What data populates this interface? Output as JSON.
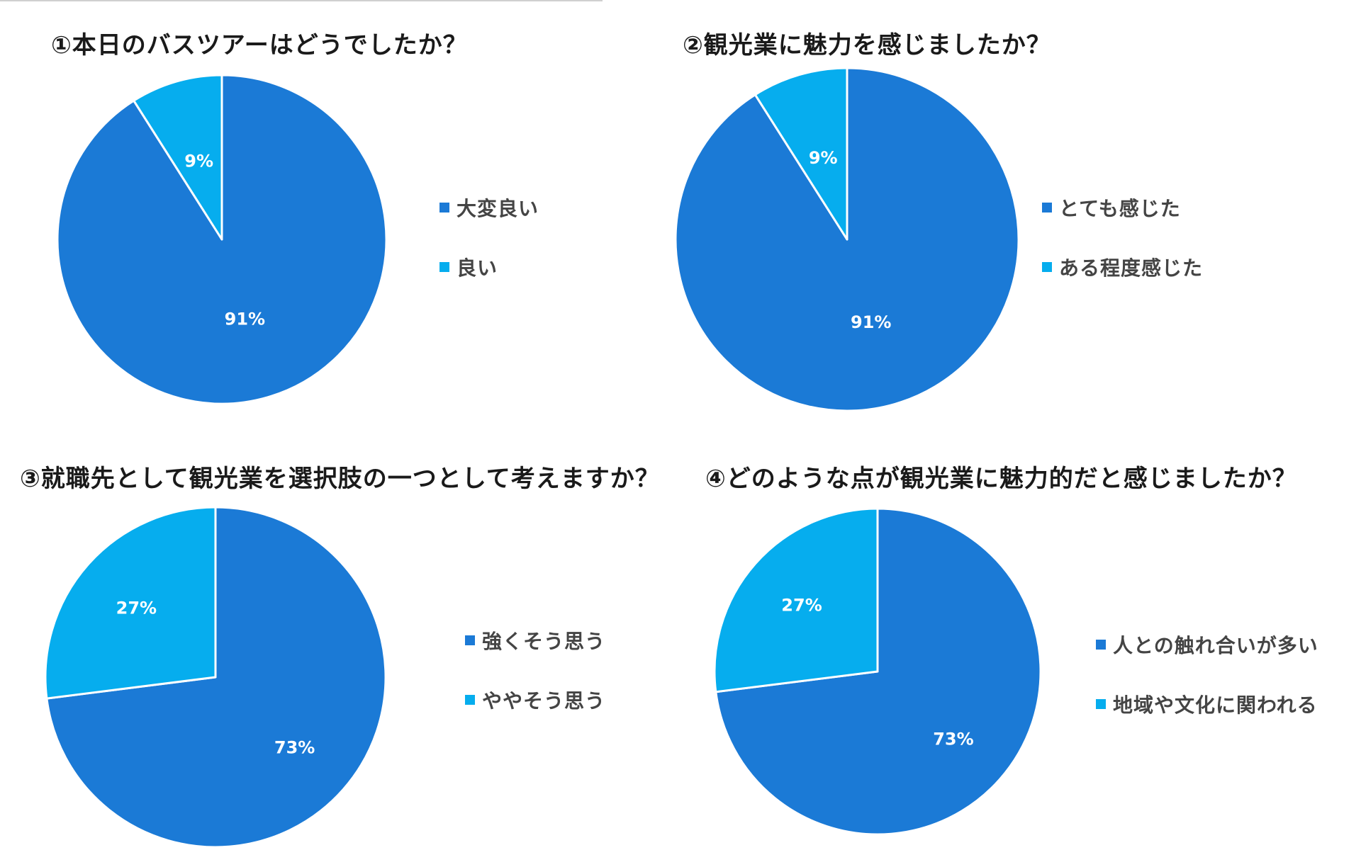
{
  "colors": {
    "primary": "#1b7ad6",
    "secondary": "#06adee"
  },
  "chart_data": [
    {
      "type": "pie",
      "title": "①本日のバスツアーはどうでしたか？",
      "categories": [
        "大変良い",
        "良い"
      ],
      "values": [
        91,
        9
      ],
      "labels": [
        "91%",
        "9%"
      ],
      "legend": "right"
    },
    {
      "type": "pie",
      "title": "②観光業に魅力を感じましたか？",
      "categories": [
        "とても感じた",
        "ある程度感じた"
      ],
      "values": [
        91,
        9
      ],
      "labels": [
        "91%",
        "9%"
      ],
      "legend": "right"
    },
    {
      "type": "pie",
      "title": "③就職先として観光業を選択肢の一つとして考えますか？",
      "categories": [
        "強くそう思う",
        "ややそう思う"
      ],
      "values": [
        73,
        27
      ],
      "labels": [
        "73%",
        "27%"
      ],
      "legend": "right"
    },
    {
      "type": "pie",
      "title": "④どのような点が観光業に魅力的だと感じましたか？",
      "categories": [
        "人との触れ合いが多い",
        "地域や文化に関われる"
      ],
      "values": [
        73,
        27
      ],
      "labels": [
        "73%",
        "27%"
      ],
      "legend": "right"
    }
  ]
}
